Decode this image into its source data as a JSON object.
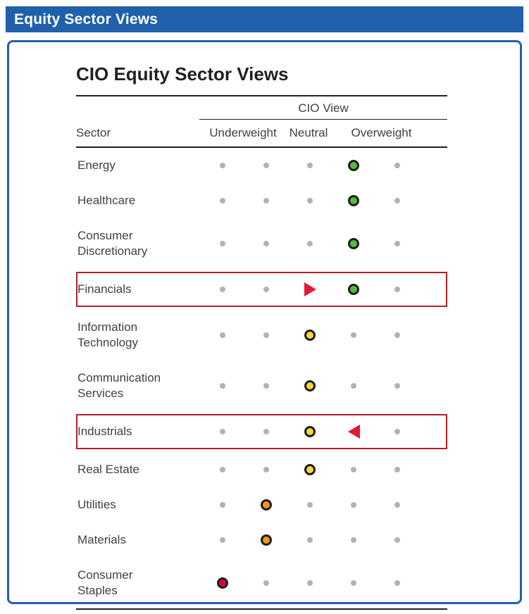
{
  "header": {
    "title": "Equity Sector Views"
  },
  "colors": {
    "blue": "#2160ab",
    "highlight_red": "#b51f24",
    "green": "#56b947",
    "yellow": "#f6d43c",
    "orange": "#f7941d",
    "red": "#d6083b",
    "triangle_red": "#e51937",
    "grey_dot": "#b2b2b2",
    "line": "#231f20",
    "text": "#414042"
  },
  "chart_data": {
    "type": "table",
    "title": "CIO Equity Sector Views",
    "group_header": "CIO View",
    "sector_column_label": "Sector",
    "columns": [
      "Underweight",
      "Neutral",
      "Overweight"
    ],
    "scale_positions": 5,
    "rows": [
      {
        "sector": "Energy",
        "lines": [
          "Energy"
        ],
        "view": "Overweight",
        "cells": [
          "dot",
          "dot",
          "dot",
          "green",
          "dot"
        ],
        "highlight": false
      },
      {
        "sector": "Healthcare",
        "lines": [
          "Healthcare"
        ],
        "view": "Overweight",
        "cells": [
          "dot",
          "dot",
          "dot",
          "green",
          "dot"
        ],
        "highlight": false
      },
      {
        "sector": "Consumer Discretionary",
        "lines": [
          "Consumer",
          "Discretionary"
        ],
        "view": "Overweight",
        "cells": [
          "dot",
          "dot",
          "dot",
          "green",
          "dot"
        ],
        "highlight": false
      },
      {
        "sector": "Financials",
        "lines": [
          "Financials"
        ],
        "view": "Overweight",
        "change": "up",
        "cells": [
          "dot",
          "dot",
          "tri-right",
          "green",
          "dot"
        ],
        "highlight": true
      },
      {
        "sector": "Information Technology",
        "lines": [
          "Information",
          "Technology"
        ],
        "view": "Neutral",
        "cells": [
          "dot",
          "dot",
          "yellow",
          "dot",
          "dot"
        ],
        "highlight": false
      },
      {
        "sector": "Communication Services",
        "lines": [
          "Communication",
          "Services"
        ],
        "view": "Neutral",
        "cells": [
          "dot",
          "dot",
          "yellow",
          "dot",
          "dot"
        ],
        "highlight": false
      },
      {
        "sector": "Industrials",
        "lines": [
          "Industrials"
        ],
        "view": "Neutral",
        "change": "down",
        "cells": [
          "dot",
          "dot",
          "yellow",
          "tri-left",
          "dot"
        ],
        "highlight": true
      },
      {
        "sector": "Real Estate",
        "lines": [
          "Real Estate"
        ],
        "view": "Neutral",
        "cells": [
          "dot",
          "dot",
          "yellow",
          "dot",
          "dot"
        ],
        "highlight": false
      },
      {
        "sector": "Utilities",
        "lines": [
          "Utilities"
        ],
        "view": "Underweight",
        "cells": [
          "dot",
          "orange",
          "dot",
          "dot",
          "dot"
        ],
        "highlight": false
      },
      {
        "sector": "Materials",
        "lines": [
          "Materials"
        ],
        "view": "Underweight",
        "cells": [
          "dot",
          "orange",
          "dot",
          "dot",
          "dot"
        ],
        "highlight": false
      },
      {
        "sector": "Consumer Staples",
        "lines": [
          "Consumer",
          "Staples"
        ],
        "view": "Underweight",
        "cells": [
          "red",
          "dot",
          "dot",
          "dot",
          "dot"
        ],
        "highlight": false
      }
    ]
  }
}
